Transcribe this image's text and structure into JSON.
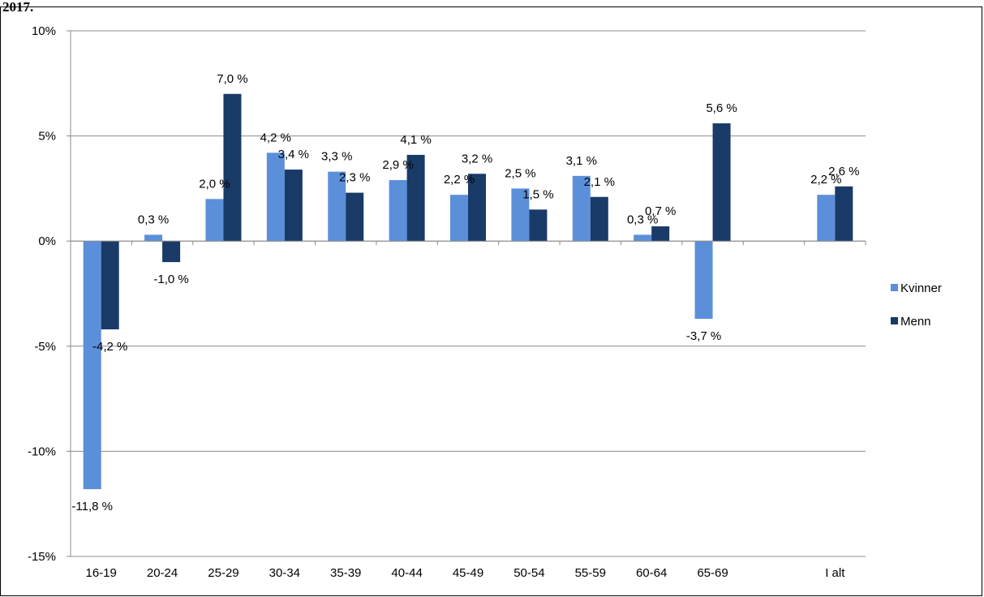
{
  "heading_fragment": "2017.",
  "chart_data": {
    "type": "bar",
    "categories": [
      "16-19",
      "20-24",
      "25-29",
      "30-34",
      "35-39",
      "40-44",
      "45-49",
      "50-54",
      "55-59",
      "60-64",
      "65-69",
      "",
      "I alt"
    ],
    "series": [
      {
        "name": "Kvinner",
        "color": "#5B8FD9",
        "values": [
          -11.8,
          0.3,
          2.0,
          4.2,
          3.3,
          2.9,
          2.2,
          2.5,
          3.1,
          0.3,
          -3.7,
          null,
          2.2
        ],
        "labels": [
          "-11,8 %",
          "0,3 %",
          "2,0 %",
          "4,2 %",
          "3,3 %",
          "2,9 %",
          "2,2 %",
          "2,5 %",
          "3,1 %",
          "0,3 %",
          "-3,7 %",
          "",
          "2,2 %"
        ]
      },
      {
        "name": "Menn",
        "color": "#1A3A68",
        "values": [
          -4.2,
          -1.0,
          7.0,
          3.4,
          2.3,
          4.1,
          3.2,
          1.5,
          2.1,
          0.7,
          5.6,
          null,
          2.6
        ],
        "labels": [
          "-4,2 %",
          "-1,0 %",
          "7,0 %",
          "3,4 %",
          "2,3 %",
          "4,1 %",
          "3,2 %",
          "1,5 %",
          "2,1 %",
          "0,7 %",
          "5,6 %",
          "",
          "2,6 %"
        ]
      }
    ],
    "ylim": [
      -15,
      10
    ],
    "yticks": [
      10,
      5,
      0,
      -5,
      -10,
      -15
    ],
    "ytick_labels": [
      "10%",
      "5%",
      "0%",
      "-5%",
      "-10%",
      "-15%"
    ],
    "grid": true,
    "legend_position": "right"
  }
}
